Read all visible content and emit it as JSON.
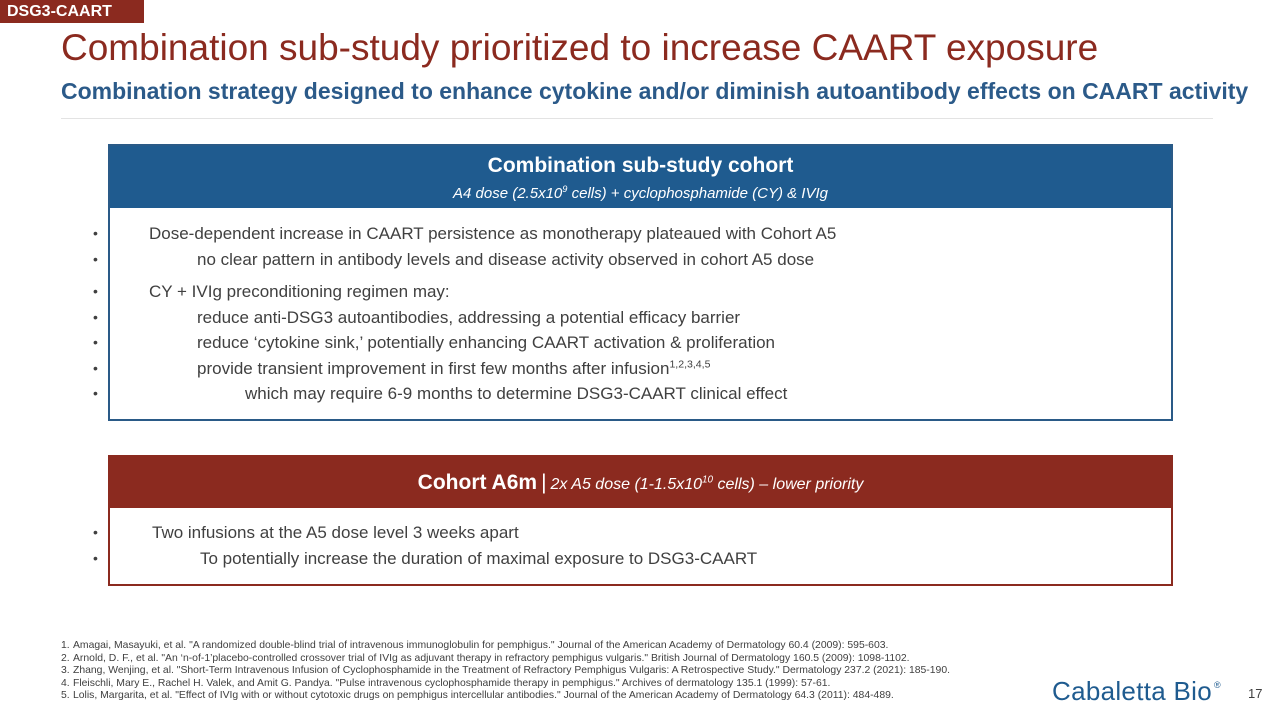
{
  "tag": "DSG3-CAART",
  "title": "Combination sub-study prioritized to increase CAART exposure",
  "subtitle": "Combination strategy designed to enhance cytokine and/or diminish autoantibody effects on CAART activity",
  "cohort_box": {
    "heading": "Combination sub-study cohort",
    "dose_prefix": "A4 dose (2.5x10",
    "dose_exp": "9",
    "dose_suffix": " cells) + cyclophosphamide (CY) & IVIg",
    "b1": "Dose-dependent increase in CAART persistence as monotherapy plateaued with Cohort A5",
    "b1_1": "no clear pattern in antibody levels and disease activity observed in cohort A5 dose",
    "b2": "CY + IVIg preconditioning regimen may:",
    "b2_1": "reduce anti-DSG3 autoantibodies, addressing a potential efficacy barrier",
    "b2_2": "reduce ‘cytokine sink,’ potentially enhancing CAART activation & proliferation",
    "b2_3": "provide transient improvement in first few months after infusion",
    "b2_3_refs": "1,2,3,4,5",
    "b2_3_1": "which may require 6-9 months to determine DSG3-CAART clinical effect"
  },
  "a6m_box": {
    "heading_strong": "Cohort A6m",
    "separator": "|",
    "heading_prefix": "2x A5 dose  (1-1.5x10",
    "heading_exp": "10",
    "heading_suffix": " cells) – lower priority",
    "b1": "Two infusions at the A5 dose level 3 weeks apart",
    "b1_1": "To potentially increase the duration of maximal exposure to DSG3-CAART"
  },
  "references": [
    {
      "num": "1.",
      "text": "Amagai, Masayuki, et al. \"A randomized double-blind trial of intravenous immunoglobulin for pemphigus.\" Journal of the American Academy of Dermatology 60.4 (2009): 595-603."
    },
    {
      "num": "2.",
      "text": "Arnold, D. F., et al. \"An ‘n-of-1’placebo-controlled crossover trial of IVIg as adjuvant therapy in refractory pemphigus vulgaris.\" British Journal of Dermatology 160.5 (2009): 1098-1102."
    },
    {
      "num": "3.",
      "text": "Zhang, Wenjing, et al. \"Short-Term Intravenous Infusion of Cyclophosphamide in the Treatment of Refractory Pemphigus Vulgaris: A Retrospective Study.\" Dermatology 237.2 (2021): 185-190."
    },
    {
      "num": "4.",
      "text": "Fleischli, Mary E., Rachel H. Valek, and Amit G. Pandya. \"Pulse intravenous cyclophosphamide therapy in pemphigus.\" Archives of dermatology 135.1 (1999): 57-61."
    },
    {
      "num": "5.",
      "text": "Lolis, Margarita, et al. \"Effect of IVIg with or without cytotoxic drugs on pemphigus intercellular antibodies.\" Journal of the American Academy of Dermatology 64.3 (2011): 484-489."
    }
  ],
  "logo": {
    "name": "Cabaletta Bio",
    "mark": "®"
  },
  "page_number": "17",
  "colors": {
    "brand_red": "#8b2a1f",
    "brand_blue": "#1f5b8f",
    "subtitle_blue": "#2b5a89"
  }
}
